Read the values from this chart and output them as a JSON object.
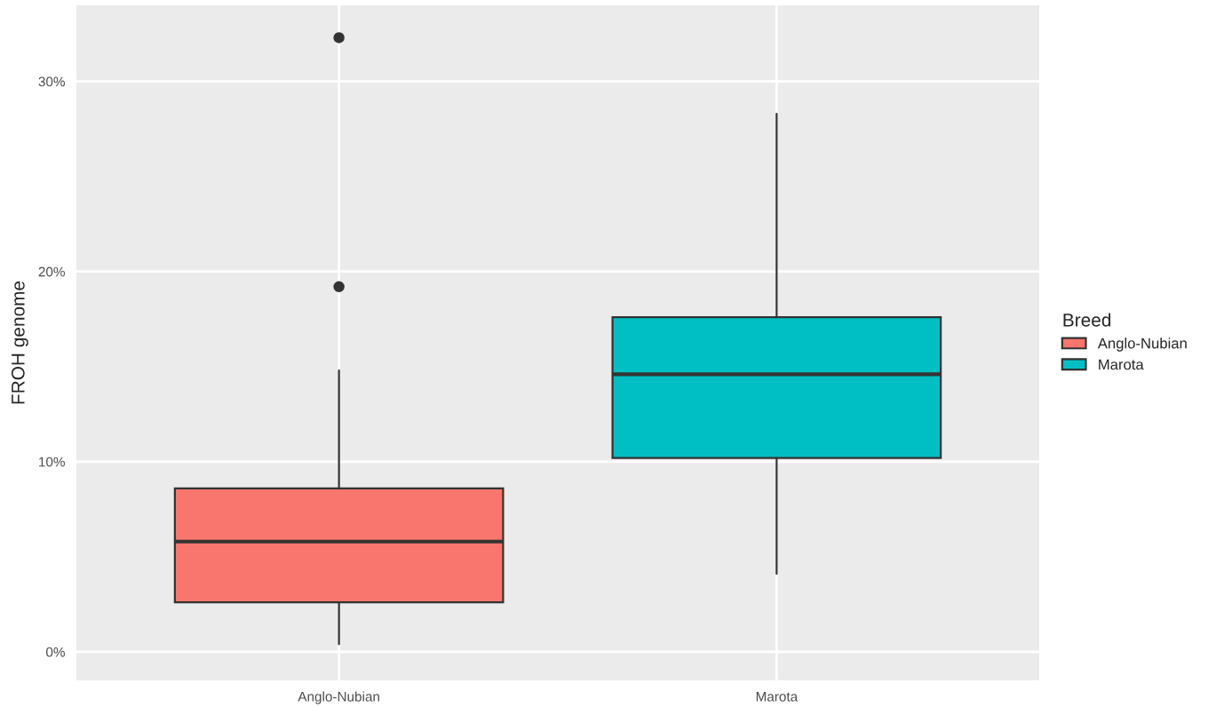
{
  "chart_data": {
    "type": "box",
    "ylabel": "FROH genome",
    "legend_title": "Breed",
    "categories": [
      "Anglo-Nubian",
      "Marota"
    ],
    "series": [
      {
        "name": "Anglo-Nubian",
        "color": "#f8766d",
        "boxes": [
          {
            "low": 0.4,
            "q1": 2.6,
            "median": 5.8,
            "q3": 8.6,
            "high": 14.8,
            "outliers": [
              19.2,
              32.3
            ]
          },
          null
        ]
      },
      {
        "name": "Marota",
        "color": "#00bfc4",
        "boxes": [
          null,
          {
            "low": 4.1,
            "q1": 10.2,
            "median": 14.6,
            "q3": 17.6,
            "high": 28.3
          }
        ]
      }
    ],
    "ylim": [
      -1.5,
      34.0
    ],
    "yticks": [
      {
        "value": 0,
        "label": "0%"
      },
      {
        "value": 10,
        "label": "10%"
      },
      {
        "value": 20,
        "label": "20%"
      },
      {
        "value": 30,
        "label": "30%"
      }
    ],
    "grid": true,
    "legend": "right"
  }
}
